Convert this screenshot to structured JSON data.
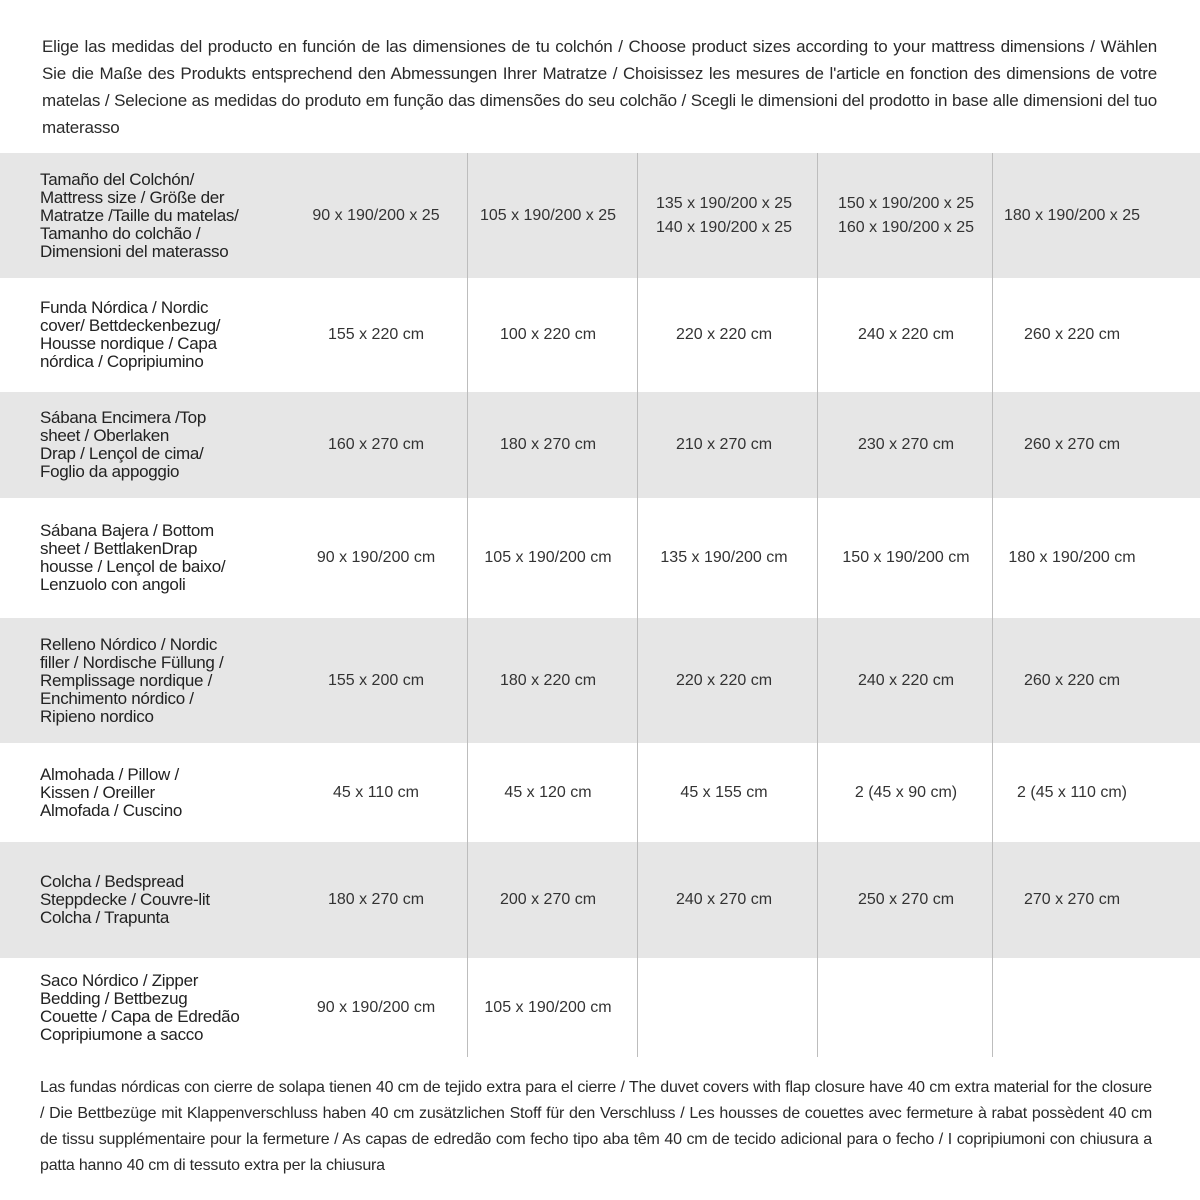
{
  "intro": "Elige las medidas del producto en función de las dimensiones de tu colchón / Choose product sizes according to your mattress dimensions / Wählen Sie die Maße des Produkts entsprechend den Abmessungen Ihrer Matratze / Choisissez les mesures de l'article en fonction des dimensions de votre matelas / Selecione as medidas do produto em função das dimensões do seu colchão / Scegli le dimensioni del prodotto in base alle dimensioni del tuo materasso",
  "table": {
    "rows": [
      {
        "label": [
          "Tamaño del Colchón/",
          "Mattress size / Größe der",
          "Matratze /Taille du matelas/",
          "Tamanho do colchão /",
          "Dimensioni del materasso"
        ],
        "cells": [
          "90 x 190/200 x 25",
          "105 x 190/200 x 25",
          [
            "135 x 190/200 x 25",
            "140 x 190/200 x 25"
          ],
          [
            "150 x 190/200 x 25",
            "160 x 190/200 x 25"
          ],
          "180 x 190/200 x 25"
        ]
      },
      {
        "label": [
          "Funda Nórdica /  Nordic",
          "cover/ Bettdeckenbezug/",
          "Housse nordique  / Capa",
          "nórdica / Copripiumino"
        ],
        "cells": [
          "155 x 220 cm",
          "100 x 220 cm",
          "220 x 220 cm",
          "240 x 220 cm",
          "260 x 220 cm"
        ]
      },
      {
        "label": [
          "Sábana Encimera /Top",
          "sheet / Oberlaken",
          "Drap / Lençol de cima/",
          "Foglio da appoggio"
        ],
        "cells": [
          "160 x 270 cm",
          "180 x 270 cm",
          "210 x 270 cm",
          "230 x 270 cm",
          "260 x 270 cm"
        ]
      },
      {
        "label": [
          "Sábana Bajera / Bottom",
          "sheet / BettlakenDrap",
          "housse / Lençol de baixo/",
          "Lenzuolo con angoli"
        ],
        "cells": [
          "90 x 190/200 cm",
          "105 x 190/200 cm",
          "135 x 190/200 cm",
          "150 x 190/200 cm",
          "180 x 190/200 cm"
        ]
      },
      {
        "label": [
          "Relleno Nórdico / Nordic",
          "filler / Nordische Füllung /",
          "Remplissage nordique /",
          "Enchimento nórdico /",
          "Ripieno nordico"
        ],
        "cells": [
          "155 x 200 cm",
          "180 x 220 cm",
          "220 x 220 cm",
          "240 x 220 cm",
          "260 x 220 cm"
        ]
      },
      {
        "label": [
          "Almohada  / Pillow /",
          "Kissen / Oreiller",
          "Almofada / Cuscino"
        ],
        "cells": [
          "45 x 110 cm",
          "45 x 120 cm",
          "45 x 155 cm",
          "2 (45 x 90 cm)",
          "2 (45 x 110 cm)"
        ]
      },
      {
        "label": [
          "Colcha / Bedspread",
          "Steppdecke / Couvre-lit",
          "Colcha / Trapunta"
        ],
        "cells": [
          "180 x 270 cm",
          "200 x 270 cm",
          "240 x 270 cm",
          "250 x 270 cm",
          "270 x 270 cm"
        ]
      },
      {
        "label": [
          "Saco Nórdico / Zipper",
          "Bedding / Bettbezug",
          "Couette  / Capa de Edredão",
          "Copripiumone a sacco"
        ],
        "cells": [
          "90 x 190/200 cm",
          "105 x 190/200 cm"
        ]
      }
    ]
  },
  "note": "Las fundas nórdicas con cierre de solapa tienen 40 cm de tejido extra para el cierre  / The duvet covers with flap closure have 40 cm extra material for the closure / Die Bettbezüge mit Klappenverschluss haben 40 cm zusätzlichen Stoff für den Verschluss / Les housses de couettes avec fermeture à rabat possèdent 40 cm de tissu supplémentaire pour la fermeture / As capas de edredão com fecho tipo aba têm 40 cm de tecido adicional para o fecho / I copripiumoni con chiusura a patta hanno 40 cm di tessuto extra per la chiusura"
}
